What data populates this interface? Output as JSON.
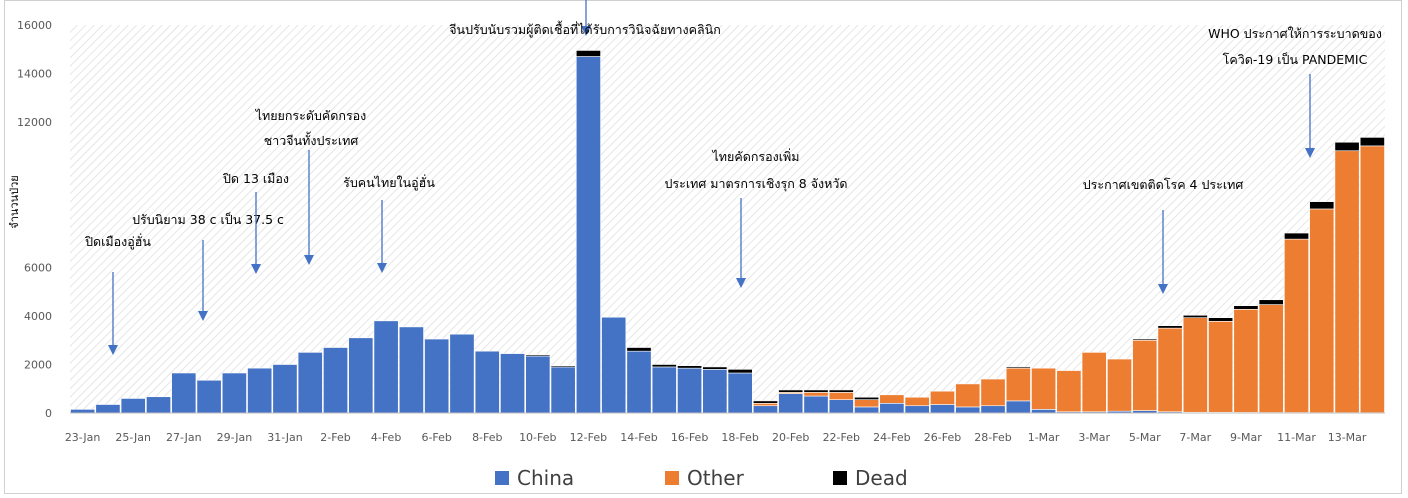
{
  "chart_data": {
    "type": "bar",
    "stacked": true,
    "ylabel": "จำนวนป่วย",
    "ylim": [
      0,
      16000
    ],
    "yticks": [
      0,
      2000,
      4000,
      6000,
      12000,
      14000,
      16000
    ],
    "grid": false,
    "legend_position": "bottom",
    "categories": [
      "23-Jan",
      "24-Jan",
      "25-Jan",
      "26-Jan",
      "27-Jan",
      "28-Jan",
      "29-Jan",
      "30-Jan",
      "31-Jan",
      "1-Feb",
      "2-Feb",
      "3-Feb",
      "4-Feb",
      "5-Feb",
      "6-Feb",
      "7-Feb",
      "8-Feb",
      "9-Feb",
      "10-Feb",
      "11-Feb",
      "12-Feb",
      "13-Feb",
      "14-Feb",
      "15-Feb",
      "16-Feb",
      "17-Feb",
      "18-Feb",
      "19-Feb",
      "20-Feb",
      "21-Feb",
      "22-Feb",
      "23-Feb",
      "24-Feb",
      "25-Feb",
      "26-Feb",
      "27-Feb",
      "28-Feb",
      "29-Feb",
      "1-Mar",
      "2-Mar",
      "3-Mar",
      "4-Mar",
      "5-Mar",
      "6-Mar",
      "7-Mar",
      "8-Mar",
      "9-Mar",
      "10-Mar",
      "11-Mar",
      "12-Mar",
      "13-Mar",
      "14-Mar"
    ],
    "xtick_labels": [
      "23-Jan",
      "25-Jan",
      "27-Jan",
      "29-Jan",
      "31-Jan",
      "2-Feb",
      "4-Feb",
      "6-Feb",
      "8-Feb",
      "10-Feb",
      "12-Feb",
      "14-Feb",
      "16-Feb",
      "18-Feb",
      "20-Feb",
      "22-Feb",
      "24-Feb",
      "26-Feb",
      "28-Feb",
      "1-Mar",
      "3-Mar",
      "5-Mar",
      "7-Mar",
      "9-Mar",
      "11-Mar",
      "13-Mar"
    ],
    "series": [
      {
        "name": "China",
        "color": "#4472C4",
        "values": [
          150,
          350,
          600,
          670,
          1650,
          1350,
          1650,
          1850,
          2000,
          2500,
          2700,
          3100,
          3800,
          3550,
          3050,
          3250,
          2550,
          2450,
          2350,
          1900,
          14700,
          3950,
          2550,
          1900,
          1850,
          1800,
          1650,
          300,
          800,
          700,
          550,
          250,
          400,
          300,
          350,
          250,
          300,
          500,
          150,
          50,
          50,
          75,
          100,
          50,
          30,
          30,
          25,
          20,
          20,
          15,
          15,
          15
        ]
      },
      {
        "name": "Other",
        "color": "#ED7D31",
        "values": [
          0,
          0,
          0,
          0,
          0,
          0,
          0,
          0,
          0,
          0,
          0,
          0,
          0,
          0,
          0,
          0,
          0,
          0,
          0,
          0,
          0,
          0,
          0,
          0,
          0,
          0,
          0,
          100,
          50,
          150,
          300,
          300,
          350,
          350,
          550,
          950,
          1100,
          1350,
          1700,
          1700,
          2450,
          2150,
          2900,
          3450,
          3900,
          3750,
          4250,
          4450,
          7150,
          8400,
          10800,
          11000
        ]
      },
      {
        "name": "Dead",
        "color": "#000000",
        "values": [
          0,
          0,
          0,
          0,
          0,
          0,
          0,
          0,
          0,
          0,
          0,
          0,
          0,
          0,
          0,
          0,
          0,
          0,
          50,
          50,
          250,
          0,
          150,
          100,
          100,
          100,
          150,
          100,
          100,
          100,
          100,
          100,
          0,
          0,
          0,
          0,
          0,
          50,
          0,
          0,
          0,
          0,
          50,
          100,
          100,
          150,
          150,
          200,
          250,
          300,
          350,
          350
        ]
      }
    ],
    "annotations": [
      {
        "lines": [
          "ปิดเมืองอู่ฮั่น"
        ],
        "arrow": true
      },
      {
        "lines": [
          "ปรับนิยาม 38 c เป็น 37.5 c"
        ],
        "arrow": true
      },
      {
        "lines": [
          "ปิด 13 เมือง"
        ],
        "arrow": true
      },
      {
        "lines": [
          "ไทยยกระดับคัดกรอง",
          "ชาวจีนทั้งประเทศ"
        ],
        "arrow": true
      },
      {
        "lines": [
          "รับคนไทยในอู่ฮั่น"
        ],
        "arrow": true
      },
      {
        "lines": [
          "จีนปรับนับรวมผู้ติดเชื้อที่ได้รับการวินิจฉัยทางคลินิก"
        ],
        "arrow": true
      },
      {
        "lines": [
          "ไทยคัดกรองเพิ่ม",
          "ประเทศ มาตรการเชิงรุก 8 จังหวัด"
        ],
        "arrow": true
      },
      {
        "lines": [
          "ประกาศเขตติดโรค 4 ประเทศ"
        ],
        "arrow": true
      },
      {
        "lines": [
          "WHO ประกาศให้การระบาดของ",
          "โควิด-19 เป็น PANDEMIC"
        ],
        "arrow": true
      }
    ]
  }
}
